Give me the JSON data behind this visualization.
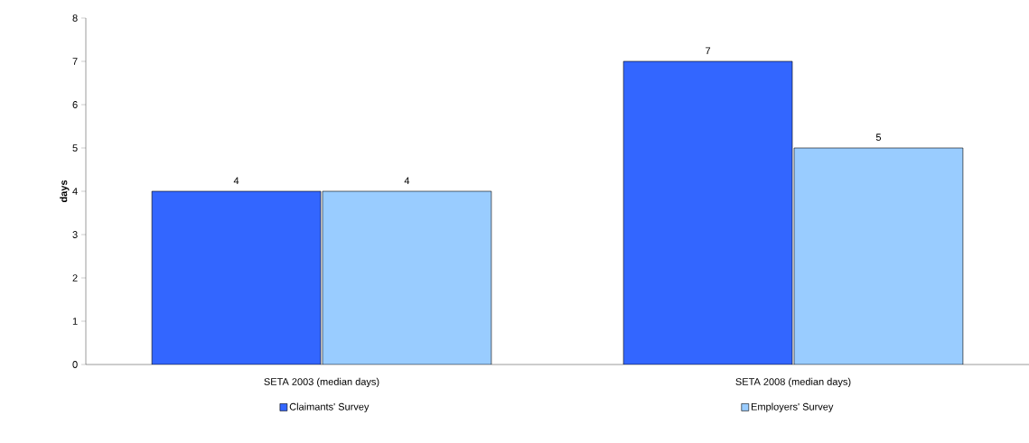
{
  "chart_data": {
    "type": "bar",
    "ylabel": "days",
    "categories": [
      "SETA 2003 (median days)",
      "SETA 2008 (median days)"
    ],
    "series": [
      {
        "name": "Claimants' Survey",
        "color": "#3366ff",
        "values": [
          4,
          7
        ]
      },
      {
        "name": "Employers' Survey",
        "color": "#99ccff",
        "values": [
          4,
          5
        ]
      }
    ],
    "ylim": [
      0,
      8
    ],
    "yticks": [
      0,
      1,
      2,
      3,
      4,
      5,
      6,
      7,
      8
    ],
    "grid": false,
    "legend": "bottom",
    "data_labels": true
  }
}
